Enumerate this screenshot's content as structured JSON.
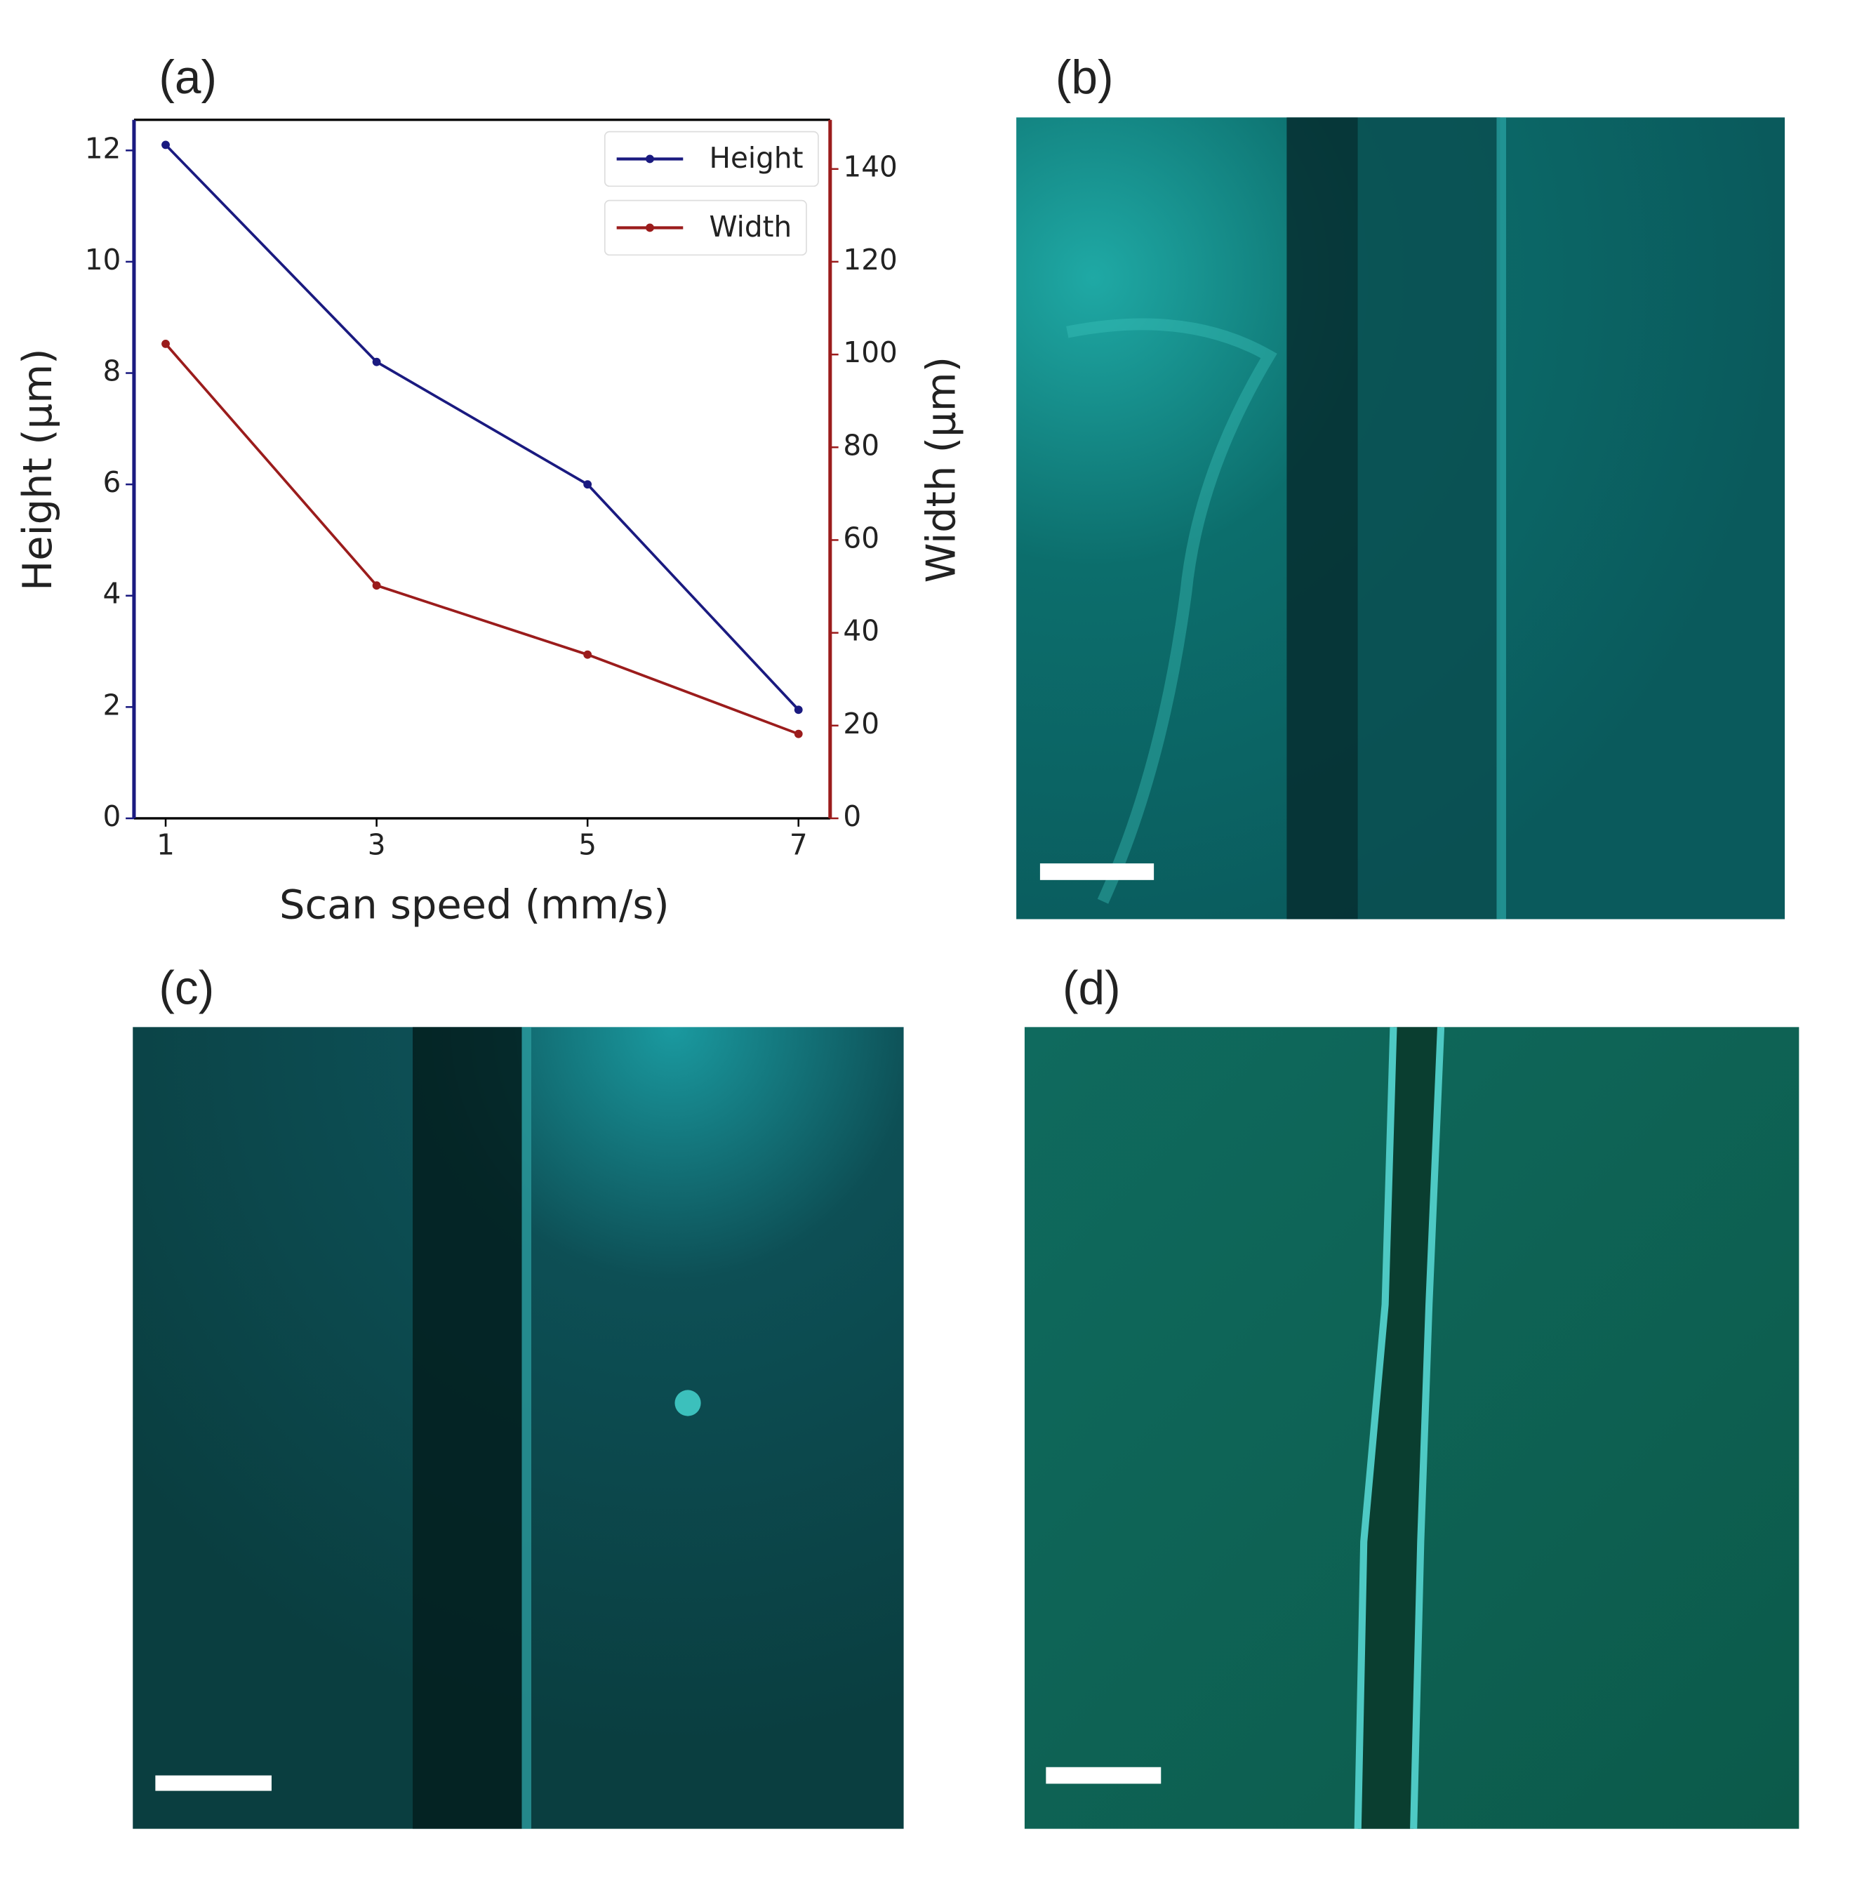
{
  "chart_data": {
    "type": "line",
    "x": [
      1,
      3,
      5,
      7
    ],
    "xlabel": "Scan speed (mm/s)",
    "ylabel": "Height (µm)",
    "y2label": "Width (µm)",
    "xlim": [
      0.7,
      7.3
    ],
    "xticks": [
      1,
      3,
      5,
      7
    ],
    "ylim": [
      0,
      12.55
    ],
    "yticks": [
      0,
      2,
      4,
      6,
      8,
      10,
      12
    ],
    "y2lim": [
      0,
      150.6
    ],
    "y2ticks": [
      0,
      20,
      40,
      60,
      80,
      100,
      120,
      140
    ],
    "legend": "upper right",
    "grid": false,
    "left_axis_color": "#1a1a80",
    "right_axis_color": "#9b1c1c",
    "series": [
      {
        "name": "Height",
        "color": "#1a1a80",
        "values": [
          12.1,
          8.2,
          6.0,
          1.95
        ]
      },
      {
        "name": "Width",
        "color": "#9b1c1c",
        "axis": "y2",
        "values": [
          102.3,
          50.2,
          35.3,
          18.2
        ]
      }
    ]
  },
  "panels": {
    "labels": [
      "(a)",
      "(b)",
      "(c)",
      "(d)"
    ]
  }
}
